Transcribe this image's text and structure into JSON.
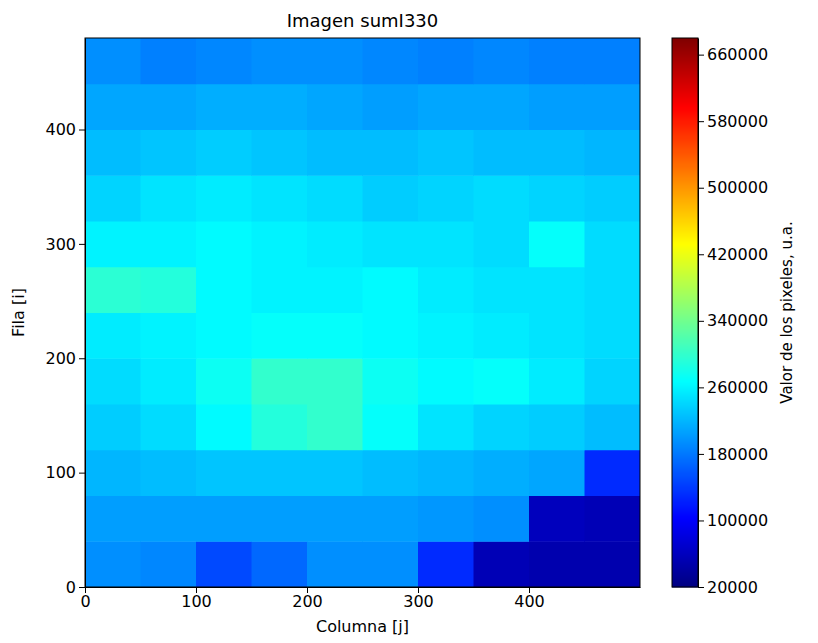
{
  "chart_data": {
    "type": "heatmap",
    "title": "Imagen sumI330",
    "x_label": "Columna [j]",
    "y_label": "Fila [i]",
    "xlim": [
      0,
      500
    ],
    "ylim": [
      0,
      480
    ],
    "xticks": [
      0,
      100,
      200,
      300,
      400
    ],
    "yticks": [
      0,
      100,
      200,
      300,
      400
    ],
    "x_edges": [
      0,
      50,
      100,
      150,
      200,
      250,
      300,
      350,
      400,
      450,
      500
    ],
    "y_edges": [
      0,
      40,
      80,
      120,
      160,
      200,
      240,
      280,
      320,
      360,
      400,
      440,
      480
    ],
    "cells": [
      [
        195000,
        190000,
        150000,
        170000,
        195000,
        195000,
        130000,
        55000,
        50000,
        50000
      ],
      [
        205000,
        205000,
        205000,
        205000,
        205000,
        205000,
        200000,
        195000,
        60000,
        55000
      ],
      [
        220000,
        225000,
        230000,
        230000,
        230000,
        225000,
        220000,
        215000,
        210000,
        130000
      ],
      [
        235000,
        245000,
        265000,
        290000,
        300000,
        270000,
        250000,
        240000,
        235000,
        225000
      ],
      [
        245000,
        255000,
        275000,
        300000,
        300000,
        275000,
        265000,
        270000,
        255000,
        240000
      ],
      [
        255000,
        260000,
        265000,
        270000,
        270000,
        265000,
        260000,
        255000,
        250000,
        245000
      ],
      [
        295000,
        290000,
        265000,
        260000,
        260000,
        265000,
        255000,
        250000,
        250000,
        245000
      ],
      [
        260000,
        260000,
        265000,
        260000,
        255000,
        250000,
        250000,
        245000,
        270000,
        245000
      ],
      [
        240000,
        250000,
        255000,
        250000,
        245000,
        235000,
        240000,
        245000,
        240000,
        235000
      ],
      [
        225000,
        230000,
        235000,
        230000,
        225000,
        225000,
        230000,
        225000,
        225000,
        220000
      ],
      [
        210000,
        210000,
        215000,
        215000,
        210000,
        205000,
        210000,
        210000,
        205000,
        205000
      ],
      [
        195000,
        185000,
        190000,
        195000,
        195000,
        190000,
        185000,
        190000,
        185000,
        185000
      ]
    ],
    "colorbar": {
      "label": "Valor de los pixeles, u.a.",
      "range": [
        20000,
        680000
      ],
      "ticks": [
        20000,
        100000,
        180000,
        260000,
        340000,
        420000,
        500000,
        580000,
        660000
      ]
    }
  }
}
